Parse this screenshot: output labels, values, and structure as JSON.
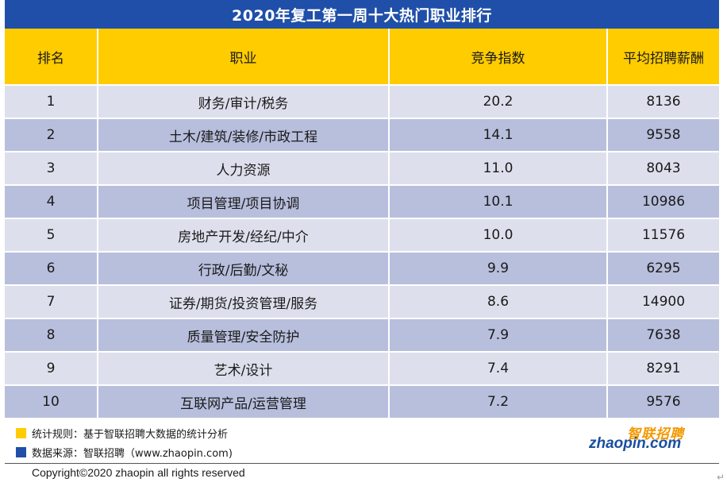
{
  "title": "2020年复工第一周十大热门职业排行",
  "table": {
    "headers": [
      "排名",
      "职业",
      "竞争指数",
      "平均招聘薪酬"
    ],
    "rows": [
      [
        "1",
        "财务/审计/税务",
        "20.2",
        "8136"
      ],
      [
        "2",
        "土木/建筑/装修/市政工程",
        "14.1",
        "9558"
      ],
      [
        "3",
        "人力资源",
        "11.0",
        "8043"
      ],
      [
        "4",
        "项目管理/项目协调",
        "10.1",
        "10986"
      ],
      [
        "5",
        "房地产开发/经纪/中介",
        "10.0",
        "11576"
      ],
      [
        "6",
        "行政/后勤/文秘",
        "9.9",
        "6295"
      ],
      [
        "7",
        "证券/期货/投资管理/服务",
        "8.6",
        "14900"
      ],
      [
        "8",
        "质量管理/安全防护",
        "7.9",
        "7638"
      ],
      [
        "9",
        "艺术/设计",
        "7.4",
        "8291"
      ],
      [
        "10",
        "互联网产品/运营管理",
        "7.2",
        "9576"
      ]
    ]
  },
  "notes": {
    "rule": "统计规则：基于智联招聘大数据的统计分析",
    "source": "数据来源：智联招聘（www.zhaopin.com)"
  },
  "logo": {
    "cn": "智联招聘",
    "en": "zhaopin.com"
  },
  "copyright": "Copyright©2020 zhaopin all rights reserved",
  "colors": {
    "title_bg": "#1f4fa8",
    "header_bg": "#ffcc00",
    "row_light": "#dde0ec",
    "row_dark": "#b8bfdd",
    "note_rule": "#ffcc00",
    "note_source": "#1f4fa8"
  },
  "icons": {
    "return": "return-arrow-icon"
  }
}
